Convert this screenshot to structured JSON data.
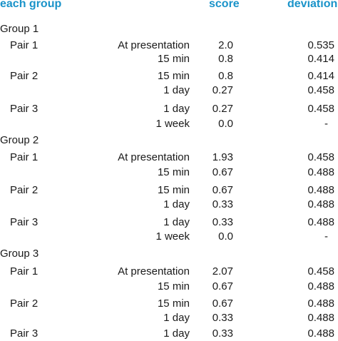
{
  "header": {
    "col1": "each group",
    "score": "score",
    "deviation": "deviation"
  },
  "rows": [
    {
      "kind": "group",
      "label": "Group 1"
    },
    {
      "kind": "data",
      "pair": "Pair 1",
      "time": "At presentation",
      "score": "2.0",
      "deviation": "0.535"
    },
    {
      "kind": "data",
      "pair": "",
      "time": "15 min",
      "score": "0.8",
      "deviation": "0.414"
    },
    {
      "kind": "data",
      "pair": "Pair 2",
      "time": "15 min",
      "score": "0.8",
      "deviation": "0.414"
    },
    {
      "kind": "data",
      "pair": "",
      "time": "1 day",
      "score": "0.27",
      "deviation": "0.458"
    },
    {
      "kind": "data",
      "pair": "Pair 3",
      "time": "1 day",
      "score": "0.27",
      "deviation": "0.458"
    },
    {
      "kind": "data",
      "pair": "",
      "time": "1 week",
      "score": "0.0",
      "deviation": "-"
    },
    {
      "kind": "group",
      "label": "Group 2"
    },
    {
      "kind": "data",
      "pair": "Pair 1",
      "time": "At presentation",
      "score": "1.93",
      "deviation": "0.458"
    },
    {
      "kind": "data",
      "pair": "",
      "time": "15 min",
      "score": "0.67",
      "deviation": "0.488"
    },
    {
      "kind": "data",
      "pair": "Pair 2",
      "time": "15 min",
      "score": "0.67",
      "deviation": "0.488"
    },
    {
      "kind": "data",
      "pair": "",
      "time": "1 day",
      "score": "0.33",
      "deviation": "0.488"
    },
    {
      "kind": "data",
      "pair": "Pair 3",
      "time": "1 day",
      "score": "0.33",
      "deviation": "0.488"
    },
    {
      "kind": "data",
      "pair": "",
      "time": "1 week",
      "score": "0.0",
      "deviation": "-"
    },
    {
      "kind": "group",
      "label": "Group 3"
    },
    {
      "kind": "data",
      "pair": "Pair 1",
      "time": "At presentation",
      "score": "2.07",
      "deviation": "0.458"
    },
    {
      "kind": "data",
      "pair": "",
      "time": "15 min",
      "score": "0.67",
      "deviation": "0.488"
    },
    {
      "kind": "data",
      "pair": "Pair 2",
      "time": "15 min",
      "score": "0.67",
      "deviation": "0.488"
    },
    {
      "kind": "data",
      "pair": "",
      "time": "1 day",
      "score": "0.33",
      "deviation": "0.488"
    },
    {
      "kind": "data",
      "pair": "Pair 3",
      "time": "1 day",
      "score": "0.33",
      "deviation": "0.488"
    }
  ]
}
